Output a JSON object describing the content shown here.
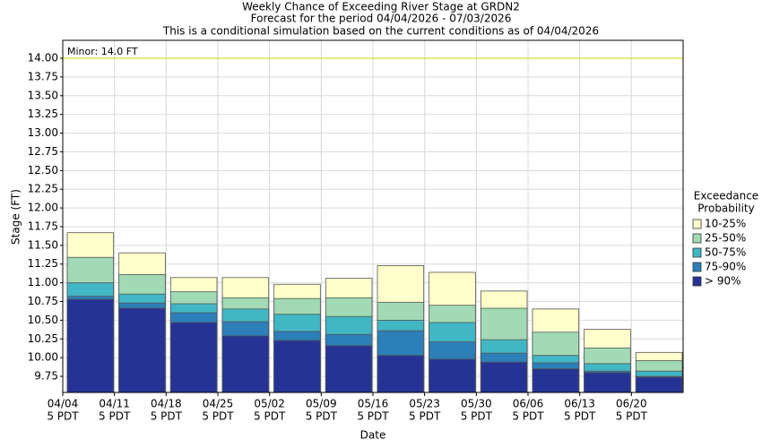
{
  "chart_data": {
    "type": "bar",
    "title": "Weekly Chance of Exceeding River Stage at GRDN2",
    "subtitle": "Forecast for the period 04/04/2026 - 07/03/2026",
    "note": "This is a conditional simulation based on the current conditions as of 04/04/2026",
    "y_label": "Stage (FT)",
    "x_label": "Date",
    "legend_title": [
      "Exceedance",
      "Probability"
    ],
    "categories": [
      "04/04",
      "04/11",
      "04/18",
      "04/25",
      "05/02",
      "05/09",
      "05/16",
      "05/23",
      "05/30",
      "06/06",
      "06/13",
      "06/20"
    ],
    "category_times": [
      "5 PDT",
      "5 PDT",
      "5 PDT",
      "5 PDT",
      "5 PDT",
      "5 PDT",
      "5 PDT",
      "5 PDT",
      "5 PDT",
      "5 PDT",
      "5 PDT",
      "5 PDT"
    ],
    "series": [
      {
        "name": "10-25%",
        "color": "#ffffcc",
        "values": [
          11.67,
          11.4,
          11.07,
          11.07,
          10.98,
          11.06,
          11.23,
          11.14,
          10.89,
          10.65,
          10.38,
          10.07
        ]
      },
      {
        "name": "25-50%",
        "color": "#a1dab4",
        "values": [
          11.34,
          11.11,
          10.88,
          10.8,
          10.79,
          10.8,
          10.74,
          10.7,
          10.66,
          10.34,
          10.13,
          9.96
        ]
      },
      {
        "name": "50-75%",
        "color": "#41b6c4",
        "values": [
          11.0,
          10.85,
          10.72,
          10.65,
          10.58,
          10.55,
          10.5,
          10.47,
          10.24,
          10.03,
          9.92,
          9.82
        ]
      },
      {
        "name": "75-90%",
        "color": "#2c7fb8",
        "values": [
          10.82,
          10.73,
          10.6,
          10.48,
          10.35,
          10.31,
          10.36,
          10.21,
          10.06,
          9.93,
          9.82,
          9.75
        ]
      },
      {
        "name": "> 90%",
        "color": "#253494",
        "values": [
          10.78,
          10.66,
          10.47,
          10.29,
          10.23,
          10.16,
          10.03,
          9.98,
          9.94,
          9.85,
          9.8,
          9.74
        ]
      }
    ],
    "thresholds": [
      {
        "label": "Minor: 14.0 FT",
        "value": 14.0,
        "color": "#d4d400"
      }
    ],
    "ylim": [
      9.535,
      14.24
    ],
    "yticks": [
      9.75,
      {
        "value": 10,
        "label": "10.00"
      },
      10.25,
      {
        "value": 10.5,
        "label": "10.50"
      },
      10.75,
      {
        "value": 11,
        "label": "11.00"
      },
      11.25,
      {
        "value": 11.5,
        "label": "11.50"
      },
      11.75,
      {
        "value": 12,
        "label": "12.00"
      },
      12.25,
      {
        "value": 12.5,
        "label": "12.50"
      },
      12.75,
      {
        "value": 13,
        "label": "13.00"
      },
      13.25,
      {
        "value": 13.5,
        "label": "13.50"
      },
      13.75,
      {
        "value": 14,
        "label": "14.00"
      }
    ],
    "grid": true
  }
}
